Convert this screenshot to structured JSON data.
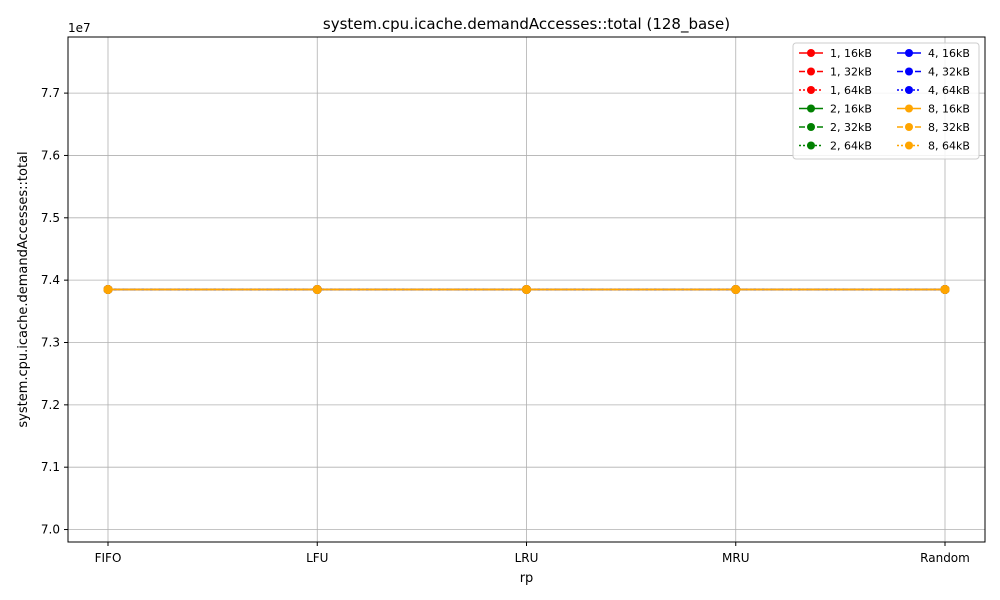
{
  "chart_data": {
    "type": "line",
    "title": "system.cpu.icache.demandAccesses::total (128_base)",
    "xlabel": "rp",
    "ylabel": "system.cpu.icache.demandAccesses::total",
    "offset_text": "1e7",
    "categories": [
      "FIFO",
      "LFU",
      "LRU",
      "MRU",
      "Random"
    ],
    "ylim": [
      69800000,
      77900000
    ],
    "yticks": [
      70000000,
      71000000,
      72000000,
      73000000,
      74000000,
      75000000,
      76000000,
      77000000
    ],
    "ytick_labels": [
      "7.0",
      "7.1",
      "7.2",
      "7.3",
      "7.4",
      "7.5",
      "7.6",
      "7.7"
    ],
    "grid": true,
    "legend_position": "top-right",
    "legend_columns": 2,
    "series": [
      {
        "name": "1, 16kB",
        "color": "#ff0000",
        "dash": "solid",
        "values": [
          73850000,
          73850000,
          73850000,
          73850000,
          73850000
        ]
      },
      {
        "name": "1, 32kB",
        "color": "#ff0000",
        "dash": "dashed",
        "values": [
          73850000,
          73850000,
          73850000,
          73850000,
          73850000
        ]
      },
      {
        "name": "1, 64kB",
        "color": "#ff0000",
        "dash": "dotted",
        "values": [
          73850000,
          73850000,
          73850000,
          73850000,
          73850000
        ]
      },
      {
        "name": "2, 16kB",
        "color": "#008000",
        "dash": "solid",
        "values": [
          73850000,
          73850000,
          73850000,
          73850000,
          73850000
        ]
      },
      {
        "name": "2, 32kB",
        "color": "#008000",
        "dash": "dashed",
        "values": [
          73850000,
          73850000,
          73850000,
          73850000,
          73850000
        ]
      },
      {
        "name": "2, 64kB",
        "color": "#008000",
        "dash": "dotted",
        "values": [
          73850000,
          73850000,
          73850000,
          73850000,
          73850000
        ]
      },
      {
        "name": "4, 16kB",
        "color": "#0000ff",
        "dash": "solid",
        "values": [
          73850000,
          73850000,
          73850000,
          73850000,
          73850000
        ]
      },
      {
        "name": "4, 32kB",
        "color": "#0000ff",
        "dash": "dashed",
        "values": [
          73850000,
          73850000,
          73850000,
          73850000,
          73850000
        ]
      },
      {
        "name": "4, 64kB",
        "color": "#0000ff",
        "dash": "dotted",
        "values": [
          73850000,
          73850000,
          73850000,
          73850000,
          73850000
        ]
      },
      {
        "name": "8, 16kB",
        "color": "#ffa500",
        "dash": "solid",
        "values": [
          73850000,
          73850000,
          73850000,
          73850000,
          73850000
        ]
      },
      {
        "name": "8, 32kB",
        "color": "#ffa500",
        "dash": "dashed",
        "values": [
          73850000,
          73850000,
          73850000,
          73850000,
          73850000
        ]
      },
      {
        "name": "8, 64kB",
        "color": "#ffa500",
        "dash": "dotted",
        "values": [
          73850000,
          73850000,
          73850000,
          73850000,
          73850000
        ]
      }
    ]
  }
}
